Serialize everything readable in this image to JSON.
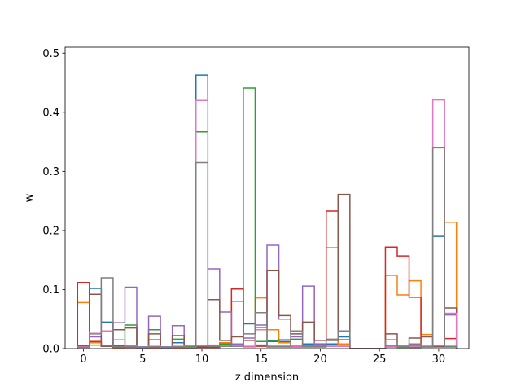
{
  "chart_data": {
    "type": "step-histogram",
    "xlabel": "z dimension",
    "ylabel": "w",
    "xlim": [
      -1.55,
      32.55
    ],
    "ylim": [
      0,
      0.51
    ],
    "xticks": [
      0,
      5,
      10,
      15,
      20,
      25,
      30
    ],
    "yticks": [
      0.0,
      0.1,
      0.2,
      0.3,
      0.4,
      0.5
    ],
    "ytick_labels": [
      "0.0",
      "0.1",
      "0.2",
      "0.3",
      "0.4",
      "0.5"
    ],
    "bin_edges_start": -0.5,
    "bin_width": 1,
    "n_bins": 32,
    "grid": false,
    "series": [
      {
        "color": "#1f77b4",
        "values": [
          0.005,
          0.102,
          0.045,
          0.005,
          0.005,
          0.003,
          0.015,
          0.003,
          0.01,
          0.004,
          0.463,
          0.005,
          0.01,
          0.008,
          0.042,
          0.006,
          0.012,
          0.012,
          0.005,
          0.008,
          0.008,
          0.008,
          0.02,
          0.0,
          0.0,
          0.0,
          0.005,
          0.004,
          0.005,
          0.003,
          0.19,
          0.003
        ]
      },
      {
        "color": "#ff7f0e",
        "values": [
          0.078,
          0.01,
          0.004,
          0.002,
          0.004,
          0.002,
          0.002,
          0.002,
          0.002,
          0.002,
          0.003,
          0.004,
          0.01,
          0.08,
          0.004,
          0.086,
          0.032,
          0.01,
          0.005,
          0.005,
          0.005,
          0.171,
          0.008,
          0.0,
          0.0,
          0.0,
          0.124,
          0.091,
          0.115,
          0.024,
          0.003,
          0.214
        ]
      },
      {
        "color": "#2ca02c",
        "values": [
          0.004,
          0.006,
          0.004,
          0.003,
          0.04,
          0.002,
          0.032,
          0.002,
          0.016,
          0.004,
          0.367,
          0.004,
          0.008,
          0.004,
          0.441,
          0.012,
          0.014,
          0.015,
          0.016,
          0.004,
          0.004,
          0.004,
          0.004,
          0.0,
          0.0,
          0.0,
          0.003,
          0.002,
          0.002,
          0.003,
          0.004,
          0.003
        ]
      },
      {
        "color": "#d62728",
        "values": [
          0.112,
          0.012,
          0.004,
          0.002,
          0.002,
          0.002,
          0.002,
          0.002,
          0.002,
          0.002,
          0.002,
          0.002,
          0.004,
          0.101,
          0.003,
          0.004,
          0.003,
          0.003,
          0.003,
          0.003,
          0.003,
          0.233,
          0.015,
          0.0,
          0.0,
          0.0,
          0.172,
          0.157,
          0.087,
          0.003,
          0.003,
          0.017
        ]
      },
      {
        "color": "#9467bd",
        "values": [
          0.004,
          0.02,
          0.004,
          0.044,
          0.104,
          0.002,
          0.055,
          0.002,
          0.039,
          0.002,
          0.004,
          0.135,
          0.062,
          0.008,
          0.018,
          0.04,
          0.175,
          0.05,
          0.02,
          0.106,
          0.007,
          0.004,
          0.004,
          0.0,
          0.0,
          0.0,
          0.003,
          0.003,
          0.004,
          0.003,
          0.003,
          0.057
        ]
      },
      {
        "color": "#8c564b",
        "values": [
          0.004,
          0.092,
          0.004,
          0.032,
          0.035,
          0.002,
          0.025,
          0.002,
          0.022,
          0.002,
          0.004,
          0.083,
          0.014,
          0.02,
          0.014,
          0.036,
          0.132,
          0.056,
          0.025,
          0.045,
          0.014,
          0.014,
          0.261,
          0.0,
          0.0,
          0.0,
          0.025,
          0.004,
          0.018,
          0.02,
          0.004,
          0.069
        ]
      },
      {
        "color": "#e377c2",
        "values": [
          0.003,
          0.028,
          0.03,
          0.015,
          0.004,
          0.002,
          0.004,
          0.002,
          0.004,
          0.002,
          0.42,
          0.006,
          0.004,
          0.004,
          0.003,
          0.032,
          0.004,
          0.004,
          0.004,
          0.004,
          0.004,
          0.004,
          0.004,
          0.0,
          0.0,
          0.0,
          0.004,
          0.004,
          0.004,
          0.004,
          0.421,
          0.06
        ]
      },
      {
        "color": "#7f7f7f",
        "values": [
          0.002,
          0.025,
          0.12,
          0.003,
          0.003,
          0.002,
          0.003,
          0.002,
          0.003,
          0.002,
          0.315,
          0.004,
          0.004,
          0.004,
          0.025,
          0.061,
          0.004,
          0.004,
          0.03,
          0.004,
          0.004,
          0.016,
          0.03,
          0.0,
          0.0,
          0.0,
          0.015,
          0.004,
          0.008,
          0.004,
          0.34,
          0.004
        ]
      }
    ]
  }
}
